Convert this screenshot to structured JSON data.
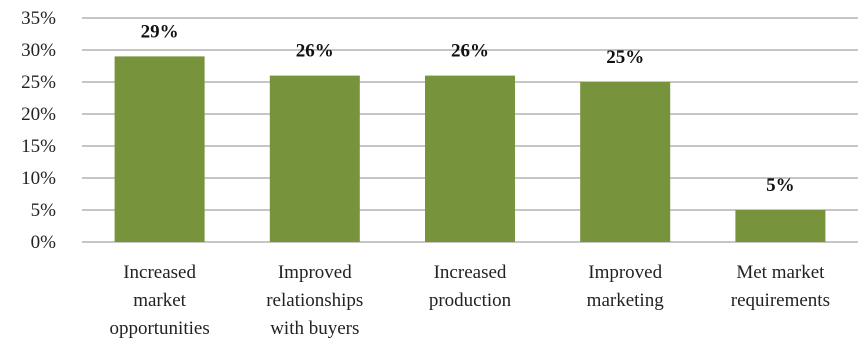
{
  "chart_data": {
    "type": "bar",
    "categories": [
      [
        "Increased",
        "market",
        "opportunities"
      ],
      [
        "Improved",
        "relationships",
        "with buyers"
      ],
      [
        "Increased",
        "production"
      ],
      [
        "Improved",
        "marketing"
      ],
      [
        "Met market",
        "requirements"
      ]
    ],
    "values": [
      29,
      26,
      26,
      25,
      5
    ],
    "data_labels": [
      "29%",
      "26%",
      "26%",
      "25%",
      "5%"
    ],
    "yticks": [
      "0%",
      "5%",
      "10%",
      "15%",
      "20%",
      "25%",
      "30%",
      "35%"
    ],
    "ylim": [
      0,
      35
    ],
    "grid": true,
    "bar_color": "#77933c"
  }
}
